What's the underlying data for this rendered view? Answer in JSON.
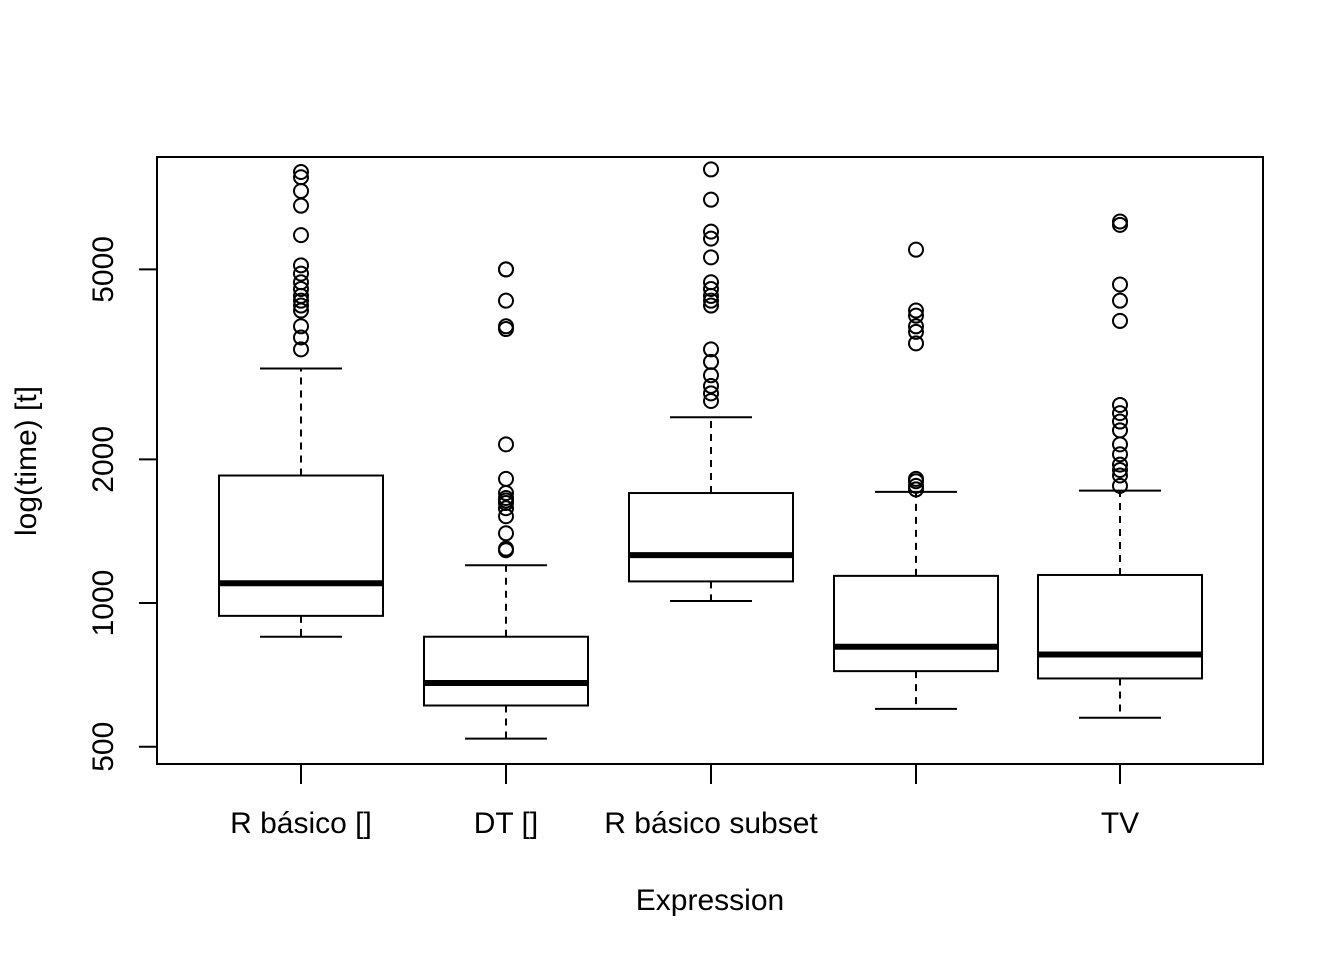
{
  "chart_data": {
    "type": "boxplot",
    "title": "",
    "xlabel": "Expression",
    "ylabel": "log(time) [t]",
    "y_scale": "log",
    "ylim": [
      460,
      8600
    ],
    "yticks": [
      500,
      1000,
      2000,
      5000
    ],
    "ytick_labels": [
      "500",
      "1000",
      "2000",
      "5000"
    ],
    "grid": false,
    "legend": "none",
    "categories": [
      "R básico []",
      "DT []",
      "R básico subset",
      "",
      "TV"
    ],
    "boxes": [
      {
        "category": "R básico []",
        "whisker_low": 850,
        "q1": 940,
        "median": 1100,
        "q3": 1850,
        "whisker_high": 3100,
        "outliers": [
          3400,
          3600,
          3800,
          4100,
          4200,
          4300,
          4400,
          4550,
          4700,
          4900,
          5100,
          5900,
          6800,
          7300,
          7800,
          8000
        ]
      },
      {
        "category": "DT []",
        "whisker_low": 520,
        "q1": 610,
        "median": 680,
        "q3": 850,
        "whisker_high": 1200,
        "outliers": [
          1290,
          1300,
          1400,
          1520,
          1580,
          1620,
          1640,
          1660,
          1700,
          1820,
          2150,
          3750,
          3800,
          4300,
          5000,
          5000
        ]
      },
      {
        "category": "R básico subset",
        "whisker_low": 1010,
        "q1": 1110,
        "median": 1260,
        "q3": 1700,
        "whisker_high": 2450,
        "outliers": [
          2650,
          2750,
          2850,
          3000,
          3200,
          3400,
          4200,
          4300,
          4400,
          4550,
          4700,
          5300,
          5800,
          6000,
          7000,
          8100
        ]
      },
      {
        "category": "",
        "whisker_low": 600,
        "q1": 720,
        "median": 810,
        "q3": 1140,
        "whisker_high": 1710,
        "outliers": [
          1730,
          1760,
          1800,
          1820,
          3500,
          3700,
          3800,
          4000,
          4100,
          5500
        ]
      },
      {
        "category": "TV",
        "whisker_low": 575,
        "q1": 695,
        "median": 780,
        "q3": 1145,
        "whisker_high": 1720,
        "outliers": [
          1760,
          1850,
          1900,
          1950,
          2050,
          2150,
          2300,
          2400,
          2500,
          2600,
          3900,
          4300,
          4650,
          6200,
          6300
        ]
      }
    ]
  }
}
